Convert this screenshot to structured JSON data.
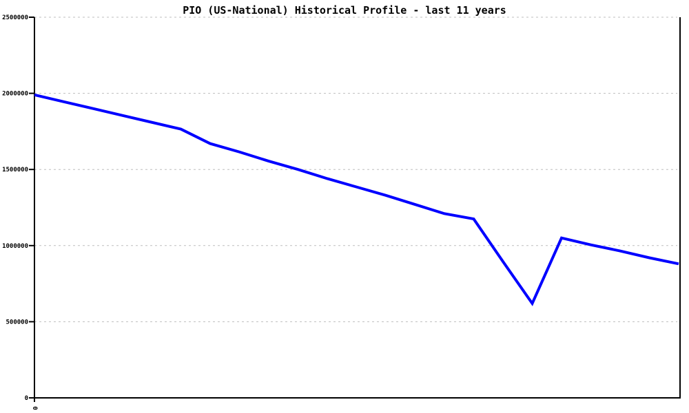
{
  "window": {
    "background": "#ffffff"
  },
  "chart_data": {
    "type": "line",
    "title": "PIO (US-National) Historical Profile - last 11 years",
    "xlabel": "",
    "ylabel": "",
    "x": [
      0,
      1,
      2,
      3,
      4,
      5,
      6,
      7,
      8,
      9,
      10,
      11,
      12,
      13,
      14,
      15,
      16,
      17,
      18,
      19,
      20,
      21,
      22
    ],
    "series": [
      {
        "name": "PIO (US-National)",
        "color": "#0000ff",
        "values": [
          1990000,
          1945000,
          1900000,
          1855000,
          1810000,
          1765000,
          1670000,
          1615000,
          1555000,
          1500000,
          1440000,
          1385000,
          1330000,
          1270000,
          1210000,
          1175000,
          895000,
          620000,
          1050000,
          1005000,
          965000,
          920000,
          880000
        ]
      }
    ],
    "ylim": [
      0,
      2500000
    ],
    "y_ticks": [
      0,
      500000,
      1000000,
      1500000,
      2000000,
      2500000
    ],
    "y_tick_labels": [
      "0",
      "500000",
      "1000000",
      "1500000",
      "2000000",
      "2500000"
    ],
    "x_tick_labels": [
      {
        "x": 0,
        "label": "0",
        "rotated": true
      }
    ],
    "grid": "dashed horizontal",
    "legend": "none",
    "axis_color": "#000000",
    "grid_color": "#bdbdbd"
  }
}
